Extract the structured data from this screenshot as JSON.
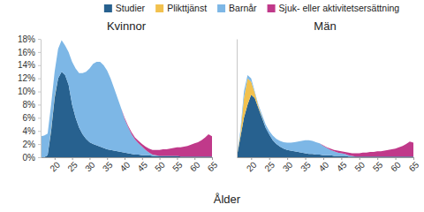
{
  "chart_data": [
    {
      "type": "area",
      "stacked": true,
      "title": "Kvinnor",
      "x_label": "Ålder",
      "legend": "top",
      "x": [
        16,
        17,
        18,
        19,
        20,
        21,
        22,
        23,
        24,
        25,
        26,
        27,
        28,
        29,
        30,
        31,
        32,
        33,
        34,
        35,
        36,
        37,
        38,
        39,
        40,
        41,
        42,
        43,
        44,
        45,
        46,
        47,
        48,
        49,
        50,
        51,
        52,
        53,
        54,
        55,
        56,
        57,
        58,
        59,
        60,
        61,
        62,
        63,
        64,
        65
      ],
      "xlim": [
        16,
        65
      ],
      "xticks": [
        20,
        25,
        30,
        35,
        40,
        45,
        50,
        55,
        60,
        65
      ],
      "ylim": [
        0,
        18
      ],
      "yticks": [
        {
          "value": 0,
          "label": "0%"
        },
        {
          "value": 2,
          "label": "2%"
        },
        {
          "value": 4,
          "label": "4%"
        },
        {
          "value": 6,
          "label": "6%"
        },
        {
          "value": 8,
          "label": "8%"
        },
        {
          "value": 10,
          "label": "10%"
        },
        {
          "value": 12,
          "label": "12%"
        },
        {
          "value": 14,
          "label": "14%"
        },
        {
          "value": 16,
          "label": "16%"
        },
        {
          "value": 18,
          "label": "18%"
        }
      ],
      "series": [
        {
          "name": "Studier",
          "color": "#27618f",
          "values": [
            0,
            0,
            0.3,
            4,
            9,
            12,
            13,
            12.5,
            11,
            8,
            6,
            4.5,
            3.5,
            2.8,
            2.3,
            2,
            1.8,
            1.6,
            1.4,
            1.2,
            1.1,
            1,
            0.9,
            0.8,
            0.7,
            0.6,
            0.5,
            0.4,
            0.4,
            0.3,
            0.3,
            0.3,
            0.2,
            0.2,
            0.2,
            0.2,
            0.2,
            0.2,
            0.2,
            0.2,
            0.1,
            0.1,
            0.1,
            0.1,
            0.1,
            0.1,
            0.1,
            0.1,
            0.1,
            0.1
          ]
        },
        {
          "name": "Plikttjänst",
          "color": "#f2c14e",
          "values": [
            0,
            0,
            0,
            0.2,
            0.2,
            0,
            0,
            0,
            0,
            0,
            0,
            0,
            0,
            0,
            0,
            0,
            0,
            0,
            0,
            0,
            0,
            0,
            0,
            0,
            0,
            0,
            0,
            0,
            0,
            0,
            0,
            0,
            0,
            0,
            0,
            0,
            0,
            0,
            0,
            0,
            0,
            0,
            0,
            0,
            0,
            0,
            0,
            0,
            0,
            0
          ]
        },
        {
          "name": "Barnår",
          "color": "#7db7e6",
          "values": [
            3.2,
            3.3,
            3.3,
            3.8,
            3.8,
            4.5,
            4.8,
            4.5,
            5,
            6.5,
            7.5,
            8.3,
            9.3,
            10.2,
            11.2,
            12.2,
            12.7,
            12.9,
            12.6,
            12,
            10.9,
            9.5,
            8.1,
            6.7,
            5.1,
            4,
            3,
            2.3,
            1.7,
            1.3,
            0.8,
            0.4,
            0.2,
            0.1,
            0,
            0,
            0,
            0,
            0,
            0,
            0,
            0,
            0,
            0,
            0,
            0,
            0,
            0,
            0,
            0
          ]
        },
        {
          "name": "Sjuk- eller aktivitetsersättning",
          "color": "#c0398a",
          "values": [
            0,
            0,
            0,
            0,
            0,
            0,
            0,
            0,
            0,
            0,
            0,
            0,
            0,
            0,
            0,
            0,
            0,
            0,
            0,
            0,
            0,
            0,
            0,
            0,
            0.2,
            0.2,
            0.3,
            0.3,
            0.4,
            0.4,
            0.5,
            0.6,
            0.7,
            0.8,
            0.9,
            1,
            1,
            1.1,
            1.2,
            1.3,
            1.4,
            1.5,
            1.6,
            1.8,
            2,
            2.2,
            2.5,
            2.9,
            3.4,
            3.1
          ]
        }
      ]
    },
    {
      "type": "area",
      "stacked": true,
      "title": "Män",
      "tick_labels": "x",
      "x": [
        16,
        17,
        18,
        19,
        20,
        21,
        22,
        23,
        24,
        25,
        26,
        27,
        28,
        29,
        30,
        31,
        32,
        33,
        34,
        35,
        36,
        37,
        38,
        39,
        40,
        41,
        42,
        43,
        44,
        45,
        46,
        47,
        48,
        49,
        50,
        51,
        52,
        53,
        54,
        55,
        56,
        57,
        58,
        59,
        60,
        61,
        62,
        63,
        64,
        65
      ],
      "xlim": [
        16,
        65
      ],
      "xticks": [
        20,
        25,
        30,
        35,
        40,
        45,
        50,
        55,
        60,
        65
      ],
      "ylim": [
        0,
        18
      ],
      "series": [
        {
          "name": "Studier",
          "color": "#27618f",
          "values": [
            0,
            3,
            6,
            8,
            9.5,
            9,
            7.5,
            6,
            4.5,
            3.5,
            2.6,
            2,
            1.6,
            1.3,
            1.1,
            1,
            0.9,
            0.8,
            0.7,
            0.6,
            0.5,
            0.5,
            0.4,
            0.4,
            0.3,
            0.3,
            0.3,
            0.2,
            0.2,
            0.2,
            0.2,
            0.1,
            0.1,
            0.1,
            0.1,
            0.1,
            0.1,
            0.1,
            0.1,
            0.1,
            0.1,
            0.1,
            0.1,
            0.1,
            0.1,
            0.1,
            0.1,
            0.1,
            0.1,
            0.1
          ]
        },
        {
          "name": "Plikttjänst",
          "color": "#f2c14e",
          "values": [
            0,
            0.5,
            3,
            4,
            2,
            0.8,
            0.3,
            0.1,
            0,
            0,
            0,
            0,
            0,
            0,
            0,
            0,
            0,
            0,
            0,
            0,
            0,
            0,
            0,
            0,
            0,
            0,
            0,
            0,
            0,
            0,
            0,
            0,
            0,
            0,
            0,
            0,
            0,
            0,
            0,
            0,
            0,
            0,
            0,
            0,
            0,
            0,
            0,
            0,
            0,
            0
          ]
        },
        {
          "name": "Barnår",
          "color": "#7db7e6",
          "values": [
            0.2,
            0.5,
            1,
            0.5,
            0.5,
            0.2,
            0.2,
            0.4,
            0.5,
            0.5,
            0.7,
            0.8,
            0.9,
            1,
            1.1,
            1.2,
            1.4,
            1.6,
            1.8,
            2,
            2.1,
            2,
            1.9,
            1.7,
            1.4,
            1.1,
            0.8,
            0.7,
            0.5,
            0.4,
            0.3,
            0.2,
            0.1,
            0,
            0,
            0,
            0,
            0,
            0,
            0,
            0,
            0,
            0,
            0,
            0,
            0,
            0,
            0,
            0,
            0
          ]
        },
        {
          "name": "Sjuk- eller aktivitetsersättning",
          "color": "#c0398a",
          "values": [
            0,
            0,
            0,
            0,
            0,
            0,
            0,
            0,
            0,
            0,
            0,
            0,
            0,
            0,
            0,
            0,
            0,
            0,
            0,
            0,
            0,
            0,
            0,
            0,
            0.1,
            0.1,
            0.2,
            0.2,
            0.3,
            0.3,
            0.3,
            0.4,
            0.4,
            0.5,
            0.5,
            0.6,
            0.6,
            0.7,
            0.7,
            0.8,
            0.8,
            0.9,
            1,
            1.1,
            1.2,
            1.4,
            1.6,
            1.9,
            2.3,
            2.1
          ]
        }
      ]
    }
  ]
}
